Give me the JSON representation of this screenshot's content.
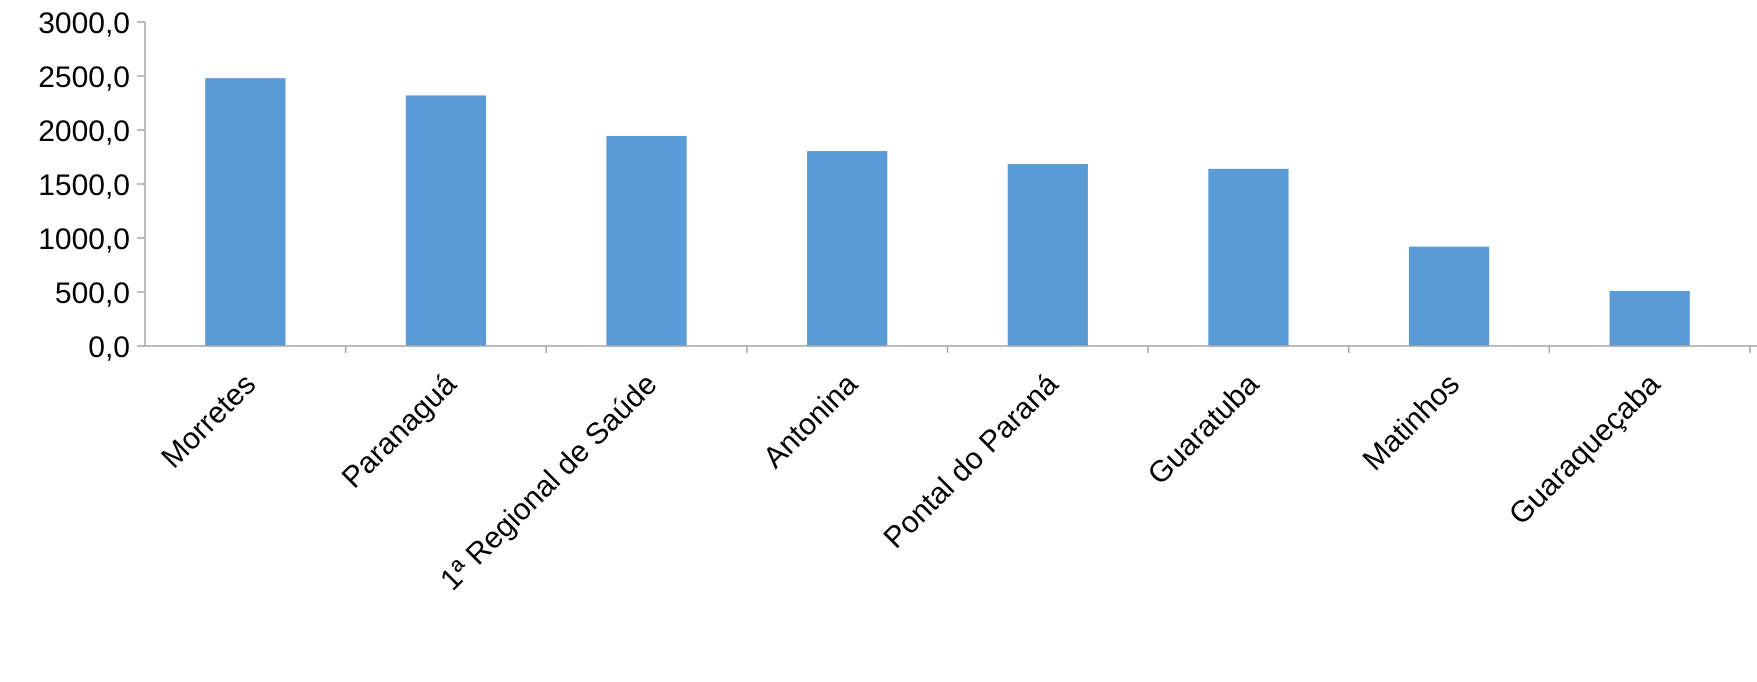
{
  "chart_data": {
    "type": "bar",
    "title": "",
    "xlabel": "",
    "ylabel": "",
    "categories": [
      "Morretes",
      "Paranaguá",
      "1ª Regional de Saúde",
      "Antonina",
      "Pontal do Paraná",
      "Guaratuba",
      "Matinhos",
      "Guaraqueçaba"
    ],
    "values": [
      2480,
      2320,
      1945,
      1805,
      1685,
      1640,
      920,
      510
    ],
    "ylim": [
      0,
      3000
    ],
    "yticks": [
      0,
      500,
      1000,
      1500,
      2000,
      2500,
      3000
    ],
    "ytick_labels": [
      "0,0",
      "500,0",
      "1000,0",
      "1500,0",
      "2000,0",
      "2500,0",
      "3000,0"
    ],
    "grid": false,
    "legend": "none",
    "bar_color": "#5b9bd5",
    "axis_color": "#a6a6a6"
  }
}
